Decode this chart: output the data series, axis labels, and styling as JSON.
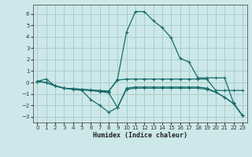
{
  "xlabel": "Humidex (Indice chaleur)",
  "background_color": "#cce8e8",
  "grid_color": "#aacccc",
  "line_color": "#1a6b6b",
  "xlim": [
    -0.5,
    23.5
  ],
  "ylim": [
    -3.5,
    6.8
  ],
  "yticks": [
    -3,
    -2,
    -1,
    0,
    1,
    2,
    3,
    4,
    5,
    6
  ],
  "xticks": [
    0,
    1,
    2,
    3,
    4,
    5,
    6,
    7,
    8,
    9,
    10,
    11,
    12,
    13,
    14,
    15,
    16,
    17,
    18,
    19,
    20,
    21,
    22,
    23
  ],
  "series": [
    {
      "x": [
        0,
        1,
        2,
        3,
        4,
        5,
        6,
        7,
        8,
        9,
        10,
        11,
        12,
        13,
        14,
        15,
        16,
        17,
        18,
        19,
        20,
        21,
        22,
        23
      ],
      "y": [
        0.1,
        0.3,
        -0.3,
        -0.5,
        -0.6,
        -0.65,
        -0.7,
        -0.75,
        -0.8,
        0.3,
        4.4,
        6.2,
        6.2,
        5.4,
        4.8,
        3.9,
        2.1,
        1.8,
        0.4,
        0.4,
        0.4,
        0.4,
        -1.8,
        -2.9
      ]
    },
    {
      "x": [
        0,
        1,
        2,
        3,
        4,
        5,
        6,
        7,
        8,
        9,
        10,
        11,
        12,
        13,
        14,
        15,
        16,
        17,
        18,
        19,
        20,
        21,
        22,
        23
      ],
      "y": [
        0.1,
        0.0,
        -0.3,
        -0.5,
        -0.55,
        -0.6,
        -0.65,
        -0.7,
        -0.75,
        0.2,
        0.3,
        0.3,
        0.3,
        0.3,
        0.3,
        0.3,
        0.3,
        0.3,
        0.3,
        0.3,
        -0.7,
        -0.7,
        -0.7,
        -0.7
      ]
    },
    {
      "x": [
        0,
        1,
        2,
        3,
        4,
        5,
        6,
        7,
        8,
        9,
        10,
        11,
        12,
        13,
        14,
        15,
        16,
        17,
        18,
        19,
        20,
        21,
        22,
        23
      ],
      "y": [
        0.1,
        0.0,
        -0.3,
        -0.5,
        -0.55,
        -0.6,
        -0.7,
        -0.8,
        -0.9,
        -2.2,
        -0.6,
        -0.5,
        -0.5,
        -0.5,
        -0.5,
        -0.5,
        -0.5,
        -0.5,
        -0.5,
        -0.6,
        -0.85,
        -1.3,
        -1.85,
        -2.9
      ]
    },
    {
      "x": [
        0,
        1,
        2,
        3,
        4,
        5,
        6,
        7,
        8,
        9,
        10,
        11,
        12,
        13,
        14,
        15,
        16,
        17,
        18,
        19,
        20,
        21,
        22,
        23
      ],
      "y": [
        0.1,
        0.0,
        -0.3,
        -0.5,
        -0.6,
        -0.7,
        -1.5,
        -2.0,
        -2.6,
        -2.2,
        -0.5,
        -0.4,
        -0.4,
        -0.4,
        -0.4,
        -0.4,
        -0.4,
        -0.4,
        -0.4,
        -0.5,
        -0.85,
        -1.3,
        -1.85,
        -2.9
      ]
    }
  ]
}
